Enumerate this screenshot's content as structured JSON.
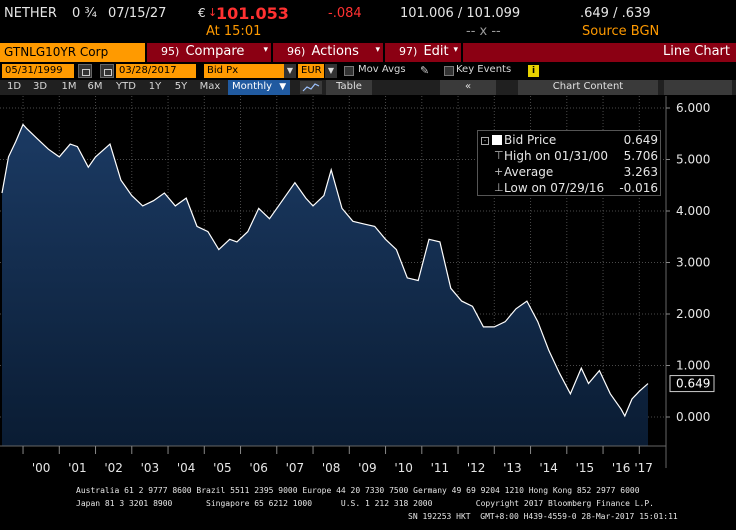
{
  "quote": {
    "ticker": "NETHER",
    "coupon": "0 ¾",
    "maturity": "07/15/27",
    "currency_symbol": "€",
    "price_direction_icon": "down-arrow",
    "price": "101.053",
    "change": "-.084",
    "bid_ask": "101.006 / 101.099",
    "yields": ".649 / .639",
    "time": "At  15:01",
    "dash": "-- x --",
    "source": "Source BGN",
    "colors": {
      "down": "#ff3131",
      "accent": "#ff9a00"
    }
  },
  "menubar": {
    "security": "GTNLG10YR Corp",
    "compare_num": "95)",
    "compare_label": "Compare",
    "actions_num": "96)",
    "actions_label": "Actions",
    "edit_num": "97)",
    "edit_label": "Edit",
    "view_title": "Line Chart"
  },
  "settings": {
    "start_date": "05/31/1999",
    "end_date": "03/28/2017",
    "field": "Bid Px",
    "currency": "EUR",
    "mov_avgs_label": "Mov Avgs",
    "key_events_label": "Key Events",
    "info_icon": "i"
  },
  "rangebar": {
    "ranges": [
      "1D",
      "3D",
      "1M",
      "6M",
      "YTD",
      "1Y",
      "5Y",
      "Max"
    ],
    "periodicity": "Monthly",
    "table_label": "Table",
    "collapse_label": "«",
    "chart_content_label": "Chart Content",
    "settings_label": ""
  },
  "legend": {
    "bid": {
      "label": "Bid Price",
      "value": "0.649"
    },
    "high": {
      "label": "High on 01/31/00",
      "value": "5.706"
    },
    "avg": {
      "label": "Average",
      "value": "3.263"
    },
    "low": {
      "label": "Low on 07/29/16",
      "value": "-0.016"
    }
  },
  "chart_data": {
    "type": "area",
    "title": "",
    "xlabel": "",
    "ylabel": "",
    "ylim": [
      -0.5,
      6.2
    ],
    "yticks": [
      "6.000",
      "5.000",
      "4.000",
      "3.000",
      "2.000",
      "1.000",
      "0.000"
    ],
    "xticks": [
      "'00",
      "'01",
      "'02",
      "'03",
      "'04",
      "'05",
      "'06",
      "'07",
      "'08",
      "'09",
      "'10",
      "'11",
      "'12",
      "'13",
      "'14",
      "'15",
      "'16",
      "'17"
    ],
    "last_value_label": "0.649",
    "series": [
      {
        "name": "Bid Price",
        "x": [
          1999.42,
          1999.6,
          1999.8,
          2000.0,
          2000.1,
          2000.4,
          2000.7,
          2001.0,
          2001.3,
          2001.5,
          2001.8,
          2002.0,
          2002.4,
          2002.7,
          2003.0,
          2003.3,
          2003.6,
          2003.9,
          2004.2,
          2004.5,
          2004.8,
          2005.1,
          2005.4,
          2005.7,
          2005.9,
          2006.2,
          2006.5,
          2006.8,
          2007.1,
          2007.5,
          2007.8,
          2008.0,
          2008.3,
          2008.5,
          2008.8,
          2009.1,
          2009.4,
          2009.7,
          2010.0,
          2010.3,
          2010.6,
          2010.9,
          2011.2,
          2011.5,
          2011.8,
          2012.1,
          2012.4,
          2012.7,
          2013.0,
          2013.3,
          2013.6,
          2013.9,
          2014.2,
          2014.5,
          2014.8,
          2015.1,
          2015.4,
          2015.6,
          2015.9,
          2016.2,
          2016.5,
          2016.6,
          2016.8,
          2017.0,
          2017.24
        ],
        "values": [
          4.35,
          5.05,
          5.35,
          5.68,
          5.6,
          5.4,
          5.2,
          5.05,
          5.3,
          5.25,
          4.85,
          5.05,
          5.3,
          4.6,
          4.3,
          4.1,
          4.2,
          4.35,
          4.1,
          4.25,
          3.7,
          3.6,
          3.25,
          3.45,
          3.4,
          3.6,
          4.05,
          3.85,
          4.15,
          4.55,
          4.25,
          4.1,
          4.3,
          4.8,
          4.05,
          3.8,
          3.75,
          3.7,
          3.45,
          3.25,
          2.7,
          2.65,
          3.45,
          3.4,
          2.5,
          2.25,
          2.15,
          1.75,
          1.75,
          1.85,
          2.1,
          2.25,
          1.85,
          1.3,
          0.85,
          0.45,
          0.95,
          0.65,
          0.9,
          0.45,
          0.15,
          0.02,
          0.35,
          0.5,
          0.649
        ]
      }
    ]
  }
}
